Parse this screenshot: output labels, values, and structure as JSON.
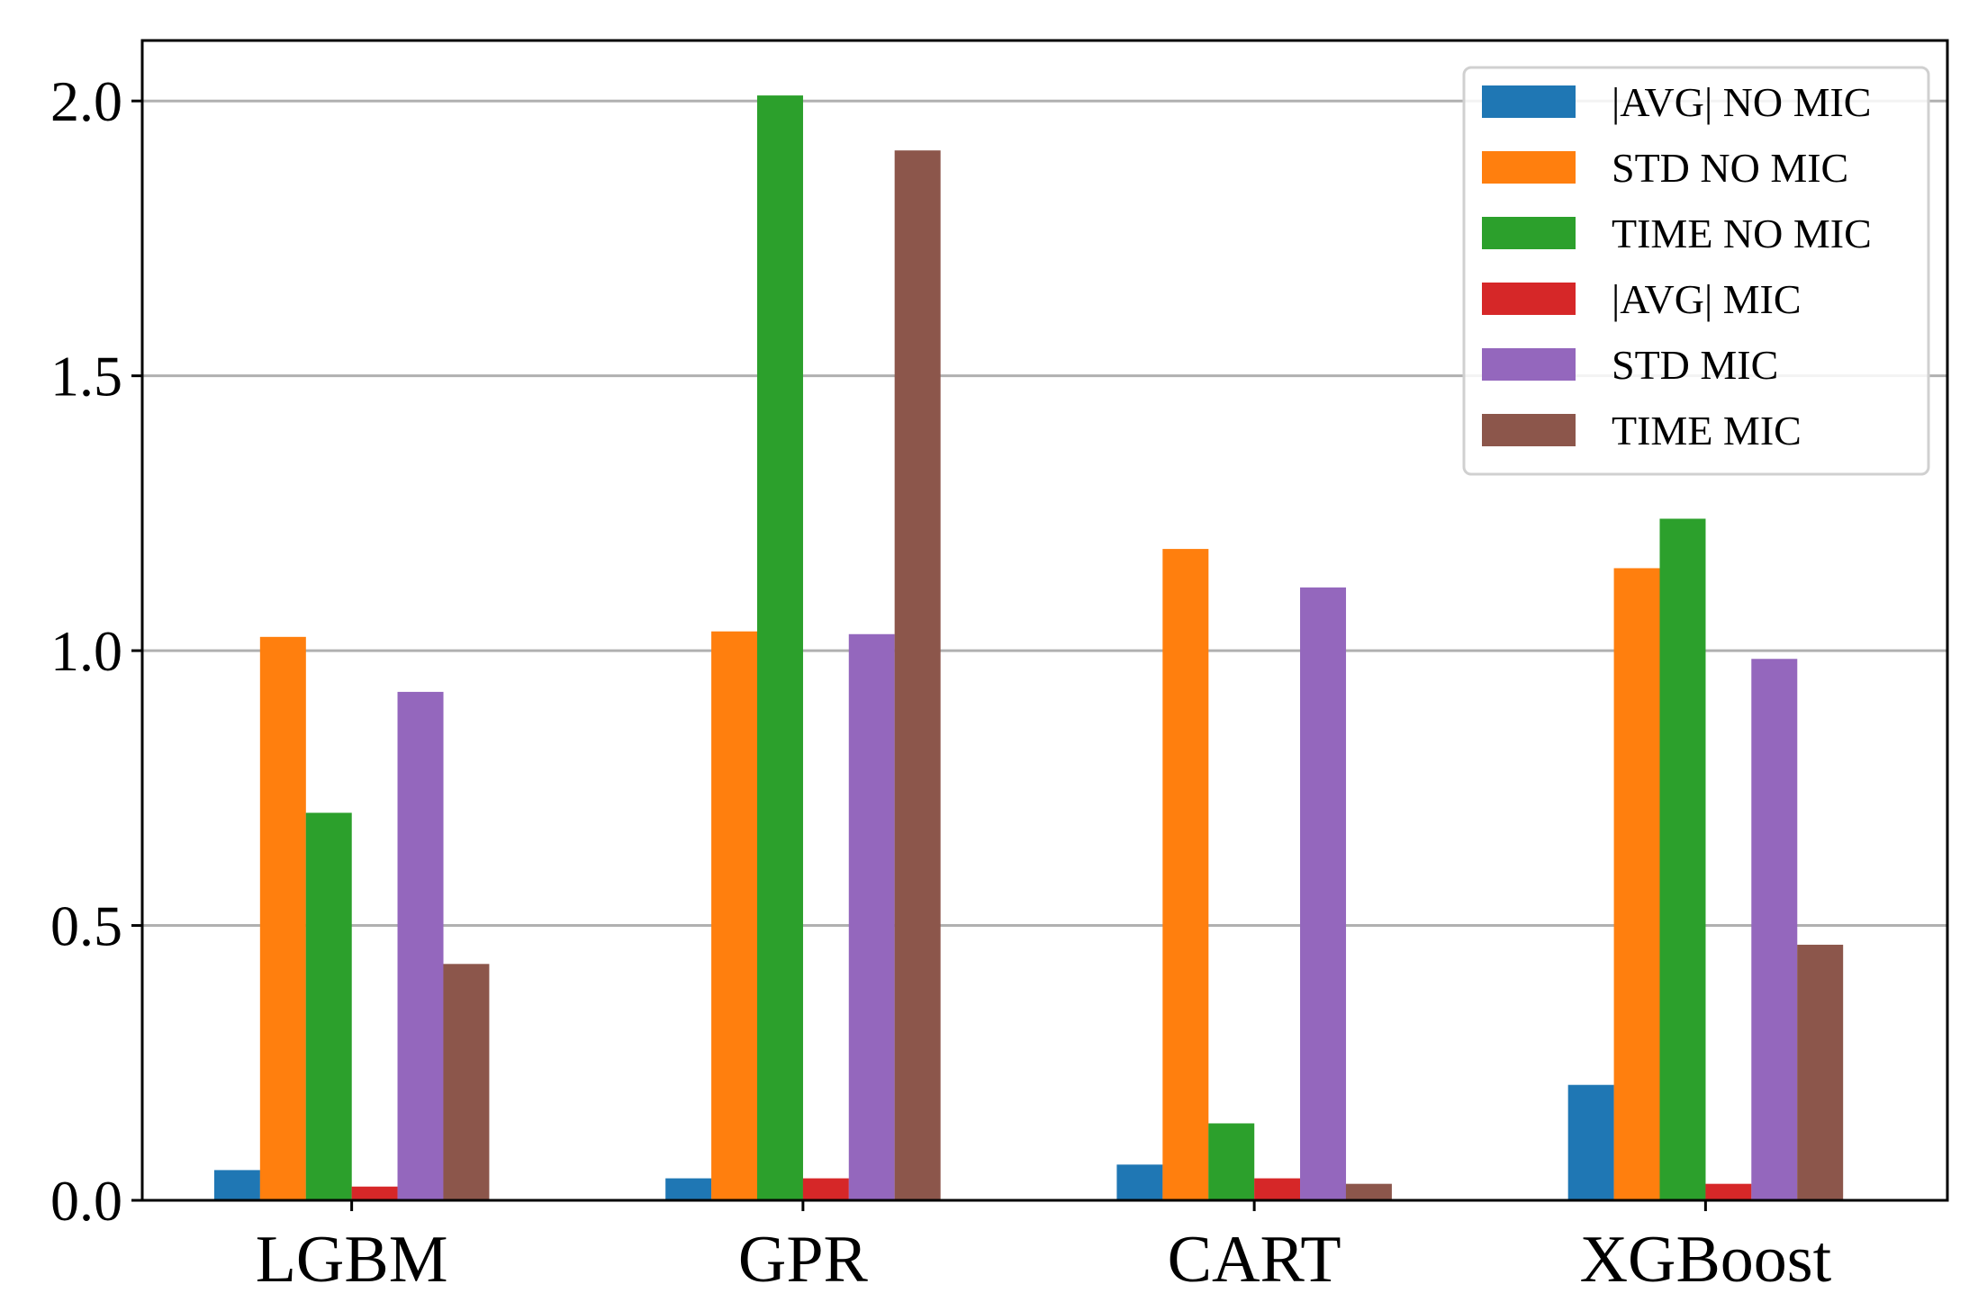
{
  "chart_data": {
    "type": "bar",
    "categories": [
      "LGBM",
      "GPR",
      "CART",
      "XGBoost"
    ],
    "series": [
      {
        "name": "|AVG| NO MIC",
        "color": "#1f77b4",
        "values": [
          0.055,
          0.04,
          0.065,
          0.21
        ]
      },
      {
        "name": "STD NO MIC",
        "color": "#ff7f0e",
        "values": [
          1.025,
          1.035,
          1.185,
          1.15
        ]
      },
      {
        "name": "TIME NO MIC",
        "color": "#2ca02c",
        "values": [
          0.705,
          2.01,
          0.14,
          1.24
        ]
      },
      {
        "name": "|AVG| MIC",
        "color": "#d62728",
        "values": [
          0.025,
          0.04,
          0.04,
          0.03
        ]
      },
      {
        "name": "STD MIC",
        "color": "#9467bd",
        "values": [
          0.925,
          1.03,
          1.115,
          0.985
        ]
      },
      {
        "name": "TIME MIC",
        "color": "#8c564b",
        "values": [
          0.43,
          1.91,
          0.03,
          0.465
        ]
      }
    ],
    "yticks": [
      "0.0",
      "0.5",
      "1.0",
      "1.5",
      "2.0"
    ],
    "ytick_values": [
      0.0,
      0.5,
      1.0,
      1.5,
      2.0
    ],
    "ylim": [
      0,
      2.11
    ],
    "grid": "y",
    "legend_position": "top-right",
    "title": "",
    "xlabel": "",
    "ylabel": ""
  }
}
